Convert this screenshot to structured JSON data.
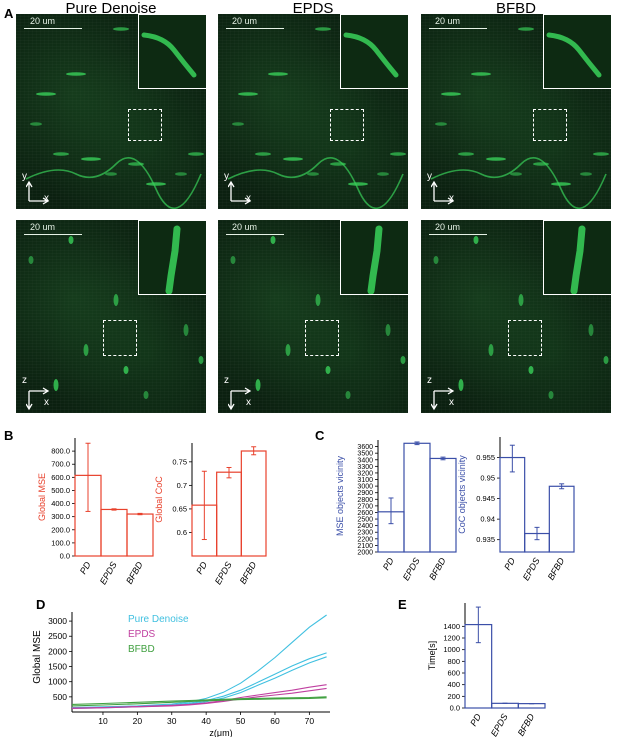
{
  "panel_letters": {
    "A": "A",
    "B": "B",
    "C": "C",
    "D": "D",
    "E": "E"
  },
  "column_titles": [
    "Pure Denoise",
    "EPDS",
    "BFBD"
  ],
  "scale_label": "20 um",
  "axes_xy": {
    "vertical": "y",
    "horizontal": "x"
  },
  "axes_zx": {
    "vertical": "z",
    "horizontal": "x"
  },
  "colors": {
    "red": "#e8412c",
    "blue": "#3b4fa8",
    "cyan": "#40c0e0",
    "magenta": "#c040a0",
    "green": "#40a040",
    "mic_bg": "#0b2010",
    "signal": "#39d25a"
  },
  "chart_data": [
    {
      "id": "B1",
      "type": "bar",
      "categories": [
        "PD",
        "EPDS",
        "BFBD"
      ],
      "values": [
        615,
        355,
        320
      ],
      "errors": [
        [
          340,
          860
        ],
        [
          350,
          360
        ],
        [
          315,
          325
        ]
      ],
      "xlabel": "",
      "ylabel": "Global MSE",
      "ylim": [
        0,
        900
      ],
      "yticks": [
        0,
        100,
        200,
        300,
        400,
        500,
        600,
        700,
        800
      ],
      "ytick_labels": [
        "0.0",
        "100.0",
        "200.0",
        "300.0",
        "400.0",
        "500.0",
        "600.0",
        "700.0",
        "800.0"
      ]
    },
    {
      "id": "B2",
      "type": "bar",
      "categories": [
        "PD",
        "EPDS",
        "BFBD"
      ],
      "values": [
        0.658,
        0.728,
        0.773
      ],
      "errors": [
        [
          0.585,
          0.73
        ],
        [
          0.716,
          0.738
        ],
        [
          0.765,
          0.782
        ]
      ],
      "xlabel": "",
      "ylabel": "Global CoC",
      "ylim": [
        0.55,
        0.79
      ],
      "yticks": [
        0.6,
        0.65,
        0.7,
        0.75
      ],
      "ytick_labels": [
        "0.6",
        "0.65",
        "0.7",
        "0.75"
      ]
    },
    {
      "id": "C1",
      "type": "bar",
      "categories": [
        "PD",
        "EPDS",
        "BFBD"
      ],
      "values": [
        2610,
        3650,
        3420
      ],
      "errors": [
        [
          2430,
          2820
        ],
        [
          3630,
          3670
        ],
        [
          3400,
          3440
        ]
      ],
      "xlabel": "",
      "ylabel": "MSE objects vicinity",
      "ylim": [
        2000,
        3700
      ],
      "yticks": [
        2000,
        2100,
        2200,
        2300,
        2400,
        2500,
        2600,
        2700,
        2800,
        2900,
        3000,
        3100,
        3200,
        3300,
        3400,
        3500,
        3600
      ],
      "ytick_labels": [
        "2000",
        "2100",
        "2200",
        "2300",
        "2400",
        "2500",
        "2600",
        "2700",
        "2800",
        "2900",
        "3000",
        "3100",
        "3200",
        "3300",
        "3400",
        "3500",
        "3600"
      ]
    },
    {
      "id": "C2",
      "type": "bar",
      "categories": [
        "PD",
        "EPDS",
        "BFBD"
      ],
      "values": [
        0.955,
        0.9365,
        0.948
      ],
      "errors": [
        [
          0.9515,
          0.958
        ],
        [
          0.935,
          0.938
        ],
        [
          0.9474,
          0.9486
        ]
      ],
      "xlabel": "",
      "ylabel": "CoC objects vicinity",
      "ylim": [
        0.932,
        0.96
      ],
      "yticks": [
        0.935,
        0.94,
        0.945,
        0.95,
        0.955
      ],
      "ytick_labels": [
        "0.935",
        "0.94",
        "0.945",
        "0.95",
        "0.955"
      ]
    },
    {
      "id": "D",
      "type": "line",
      "xlabel": "z(μm)",
      "ylabel": "Global MSE",
      "xlim": [
        1,
        76
      ],
      "ylim": [
        0,
        3300
      ],
      "xticks": [
        10,
        20,
        30,
        40,
        50,
        60,
        70
      ],
      "yticks": [
        500,
        1000,
        1500,
        2000,
        2500,
        3000
      ],
      "x": [
        1,
        10,
        20,
        30,
        35,
        40,
        45,
        50,
        55,
        60,
        65,
        70,
        75
      ],
      "series": [
        {
          "name": "Pure Denoise",
          "color": "#40c0e0",
          "values": [
            150,
            170,
            200,
            260,
            330,
            450,
            650,
            950,
            1350,
            1800,
            2300,
            2800,
            3200
          ]
        },
        {
          "name": "",
          "color": "#40c0e0",
          "values": [
            130,
            150,
            180,
            230,
            290,
            380,
            520,
            720,
            980,
            1250,
            1520,
            1760,
            1950
          ]
        },
        {
          "name": "",
          "color": "#40c0e0",
          "values": [
            120,
            140,
            170,
            210,
            260,
            340,
            460,
            640,
            880,
            1120,
            1380,
            1620,
            1820
          ]
        },
        {
          "name": "EPDS",
          "color": "#c040a0",
          "values": [
            130,
            150,
            180,
            220,
            250,
            300,
            380,
            480,
            560,
            640,
            720,
            820,
            900
          ]
        },
        {
          "name": "",
          "color": "#c040a0",
          "values": [
            120,
            140,
            170,
            200,
            230,
            280,
            350,
            430,
            500,
            560,
            620,
            700,
            780
          ]
        },
        {
          "name": "BFBD",
          "color": "#40a040",
          "values": [
            250,
            280,
            320,
            360,
            380,
            400,
            420,
            440,
            450,
            460,
            470,
            480,
            500
          ]
        },
        {
          "name": "",
          "color": "#40a040",
          "values": [
            200,
            230,
            270,
            320,
            350,
            370,
            390,
            410,
            420,
            430,
            440,
            450,
            470
          ]
        }
      ]
    },
    {
      "id": "E",
      "type": "bar",
      "categories": [
        "PD",
        "EPDS",
        "BFBD"
      ],
      "values": [
        1430,
        80,
        75
      ],
      "errors": [
        [
          1120,
          1730
        ],
        [
          78,
          82
        ],
        [
          73,
          77
        ]
      ],
      "xlabel": "",
      "ylabel": "Time[s]",
      "ylim": [
        0,
        1800
      ],
      "yticks": [
        0,
        200,
        400,
        600,
        800,
        1000,
        1200,
        1400
      ],
      "ytick_labels": [
        "0.0",
        "200",
        "400",
        "600",
        "800",
        "1000",
        "1200",
        "1400"
      ]
    }
  ]
}
